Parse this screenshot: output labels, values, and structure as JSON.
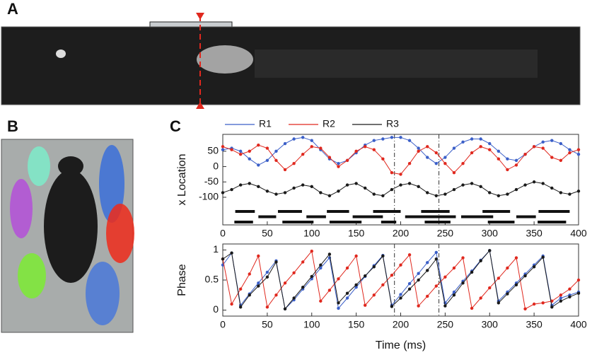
{
  "panel_labels": [
    "A",
    "B",
    "C"
  ],
  "chart_data": [
    {
      "type": "line",
      "ylabel": "x Location",
      "legend": "top",
      "x": [
        0,
        10,
        20,
        30,
        40,
        50,
        60,
        70,
        80,
        90,
        100,
        110,
        120,
        130,
        140,
        150,
        160,
        170,
        180,
        190,
        200,
        210,
        220,
        230,
        240,
        250,
        260,
        270,
        280,
        290,
        300,
        310,
        320,
        330,
        340,
        350,
        360,
        370,
        380,
        390,
        400
      ],
      "series": [
        {
          "name": "R1",
          "color": "#3b5fc8",
          "values": [
            55,
            60,
            50,
            25,
            5,
            20,
            50,
            75,
            90,
            95,
            85,
            55,
            25,
            10,
            20,
            45,
            70,
            85,
            90,
            95,
            95,
            85,
            60,
            30,
            10,
            30,
            60,
            80,
            90,
            90,
            75,
            50,
            25,
            20,
            40,
            65,
            80,
            85,
            75,
            55,
            40
          ]
        },
        {
          "name": "R2",
          "color": "#e0281e",
          "values": [
            65,
            55,
            40,
            50,
            70,
            60,
            20,
            -10,
            10,
            40,
            65,
            60,
            30,
            0,
            20,
            50,
            65,
            55,
            25,
            -20,
            -25,
            10,
            50,
            65,
            45,
            10,
            -20,
            10,
            45,
            65,
            55,
            25,
            -10,
            5,
            40,
            65,
            60,
            30,
            20,
            45,
            55
          ]
        },
        {
          "name": "R3",
          "color": "#1a1a1a",
          "values": [
            -85,
            -75,
            -60,
            -55,
            -65,
            -80,
            -90,
            -85,
            -70,
            -60,
            -65,
            -85,
            -95,
            -80,
            -60,
            -55,
            -70,
            -90,
            -95,
            -75,
            -60,
            -55,
            -65,
            -85,
            -95,
            -90,
            -75,
            -60,
            -55,
            -65,
            -85,
            -95,
            -90,
            -75,
            -60,
            -50,
            -55,
            -70,
            -85,
            -90,
            -80
          ]
        }
      ],
      "bars": [
        [
          [
            14,
            36
          ],
          [
            62,
            89
          ],
          [
            117,
            142
          ],
          [
            169,
            200
          ],
          [
            223,
            255
          ],
          [
            292,
            323
          ],
          [
            355,
            390
          ]
        ],
        [
          [
            40,
            60
          ],
          [
            94,
            116
          ],
          [
            146,
            180
          ],
          [
            205,
            262
          ],
          [
            268,
            304
          ],
          [
            330,
            352
          ]
        ],
        [
          [
            13,
            34
          ],
          [
            67,
            102
          ],
          [
            120,
            156
          ],
          [
            178,
            195
          ],
          [
            227,
            256
          ],
          [
            298,
            328
          ],
          [
            354,
            386
          ]
        ]
      ],
      "vlines": [
        193,
        243
      ],
      "xlim": [
        0,
        400
      ],
      "xticks": [
        0,
        50,
        100,
        150,
        200,
        250,
        300,
        350,
        400
      ],
      "ylim": [
        -190,
        105
      ],
      "yticks": [
        50,
        0,
        -50,
        -100
      ]
    },
    {
      "type": "line",
      "ylabel": "Phase",
      "xlabel": "Time (ms)",
      "x": [
        0,
        10,
        20,
        30,
        40,
        50,
        60,
        70,
        80,
        90,
        100,
        110,
        120,
        130,
        140,
        150,
        160,
        170,
        180,
        190,
        200,
        210,
        220,
        230,
        240,
        250,
        260,
        270,
        280,
        290,
        300,
        310,
        320,
        330,
        340,
        350,
        360,
        370,
        380,
        390,
        400
      ],
      "series": [
        {
          "name": "R1",
          "color": "#3b5fc8",
          "values": [
            0.75,
            0.95,
            0.08,
            0.27,
            0.45,
            0.63,
            0.82,
            0.02,
            0.17,
            0.35,
            0.52,
            0.7,
            0.87,
            0.03,
            0.2,
            0.38,
            0.56,
            0.74,
            0.91,
            0.08,
            0.26,
            0.44,
            0.61,
            0.79,
            0.96,
            0.12,
            0.3,
            0.48,
            0.65,
            0.83,
            0.99,
            0.15,
            0.3,
            0.45,
            0.6,
            0.75,
            0.9,
            0.08,
            0.2,
            0.25,
            0.3
          ]
        },
        {
          "name": "R2",
          "color": "#e0281e",
          "values": [
            0.85,
            0.1,
            0.35,
            0.6,
            0.9,
            0.05,
            0.25,
            0.45,
            0.62,
            0.8,
            0.98,
            0.15,
            0.33,
            0.52,
            0.7,
            0.9,
            0.08,
            0.25,
            0.42,
            0.58,
            0.75,
            0.92,
            0.07,
            0.23,
            0.4,
            0.55,
            0.7,
            0.87,
            0.03,
            0.2,
            0.37,
            0.53,
            0.7,
            0.87,
            0.02,
            0.1,
            0.12,
            0.15,
            0.25,
            0.35,
            0.5
          ]
        },
        {
          "name": "R3",
          "color": "#1a1a1a",
          "values": [
            0.85,
            0.95,
            0.05,
            0.25,
            0.4,
            0.55,
            0.8,
            0.02,
            0.2,
            0.38,
            0.56,
            0.75,
            0.93,
            0.12,
            0.28,
            0.42,
            0.57,
            0.72,
            0.9,
            0.06,
            0.2,
            0.35,
            0.5,
            0.66,
            0.85,
            0.07,
            0.25,
            0.45,
            0.63,
            0.82,
            0.99,
            0.12,
            0.27,
            0.42,
            0.57,
            0.72,
            0.88,
            0.05,
            0.15,
            0.22,
            0.28
          ]
        }
      ],
      "vlines": [
        193,
        243
      ],
      "xlim": [
        0,
        400
      ],
      "xticks": [
        0,
        50,
        100,
        150,
        200,
        250,
        300,
        350,
        400
      ],
      "ylim": [
        -0.1,
        1.1
      ],
      "yticks": [
        0,
        0.5,
        1
      ]
    }
  ]
}
